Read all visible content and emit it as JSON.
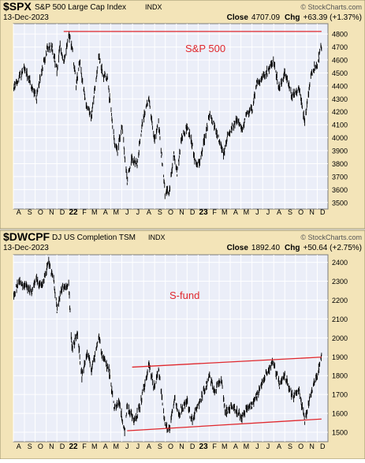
{
  "colors": {
    "frame_bg": "#f3e4b8",
    "plot_bg": "#ebeef8",
    "grid": "#ffffff",
    "price": "#000000",
    "annotation": "#e0282d",
    "text": "#000000"
  },
  "chart_data": [
    {
      "type": "line",
      "symbol": "$SPX",
      "title": "S&P 500 Large Cap Index",
      "exchange": "INDX",
      "watermark": "© StockCharts.com",
      "date": "13-Dec-2023",
      "close_label": "Close",
      "close": "4707.09",
      "chg_label": "Chg",
      "chg": "+63.39 (+1.37%)",
      "annotation_text": "S&P 500",
      "x_ticks": [
        "A",
        "S",
        "O",
        "N",
        "D",
        "22",
        "F",
        "M",
        "A",
        "M",
        "J",
        "J",
        "A",
        "S",
        "O",
        "N",
        "D",
        "23",
        "F",
        "M",
        "A",
        "M",
        "J",
        "J",
        "A",
        "S",
        "O",
        "N",
        "D"
      ],
      "y_ticks": [
        3500,
        3600,
        3700,
        3800,
        3900,
        4000,
        4100,
        4200,
        4300,
        4400,
        4500,
        4600,
        4700,
        4800
      ],
      "ylim": [
        3450,
        4880
      ],
      "grid": true,
      "x": [
        "2021-08-01",
        "2021-09-02",
        "2021-10-04",
        "2021-10-15",
        "2021-11-05",
        "2021-11-18",
        "2021-12-01",
        "2021-12-10",
        "2021-12-20",
        "2022-01-04",
        "2022-01-14",
        "2022-01-24",
        "2022-02-02",
        "2022-02-14",
        "2022-02-24",
        "2022-03-08",
        "2022-03-29",
        "2022-04-08",
        "2022-04-21",
        "2022-05-04",
        "2022-05-12",
        "2022-05-20",
        "2022-06-01",
        "2022-06-16",
        "2022-06-28",
        "2022-07-14",
        "2022-07-29",
        "2022-08-16",
        "2022-09-01",
        "2022-09-12",
        "2022-09-30",
        "2022-10-12",
        "2022-10-25",
        "2022-11-03",
        "2022-11-15",
        "2022-12-01",
        "2022-12-13",
        "2022-12-22",
        "2023-01-05",
        "2023-01-20",
        "2023-02-02",
        "2023-02-17",
        "2023-03-02",
        "2023-03-13",
        "2023-03-24",
        "2023-04-18",
        "2023-05-04",
        "2023-05-19",
        "2023-06-01",
        "2023-06-15",
        "2023-06-30",
        "2023-07-14",
        "2023-07-31",
        "2023-08-17",
        "2023-09-01",
        "2023-09-22",
        "2023-10-11",
        "2023-10-27",
        "2023-11-14",
        "2023-11-30",
        "2023-12-13"
      ],
      "series": [
        {
          "values": [
            4385,
            4535,
            4300,
            4470,
            4690,
            4700,
            4515,
            4710,
            4570,
            4795,
            4660,
            4410,
            4590,
            4380,
            4225,
            4170,
            4630,
            4490,
            4460,
            4160,
            3930,
            3900,
            4100,
            3670,
            3840,
            3790,
            4130,
            4305,
            3970,
            4110,
            3580,
            3580,
            3860,
            3720,
            4000,
            4080,
            3990,
            3820,
            3810,
            4000,
            4180,
            4080,
            3960,
            3860,
            4000,
            4150,
            4060,
            4190,
            4220,
            4425,
            4450,
            4510,
            4590,
            4370,
            4510,
            4320,
            4370,
            4120,
            4500,
            4560,
            4707
          ]
        }
      ],
      "trendlines": [
        {
          "name": "resistance",
          "x": [
            "2021-12-20",
            "2023-12-13"
          ],
          "y": [
            4820,
            4820
          ]
        }
      ]
    },
    {
      "type": "line",
      "symbol": "$DWCPF",
      "title": "DJ US Completion TSM",
      "exchange": "INDX",
      "watermark": "© StockCharts.com",
      "date": "13-Dec-2023",
      "close_label": "Close",
      "close": "1892.40",
      "chg_label": "Chg",
      "chg": "+50.64 (+2.75%)",
      "annotation_text": "S-fund",
      "x_ticks": [
        "A",
        "S",
        "O",
        "N",
        "D",
        "22",
        "F",
        "M",
        "A",
        "M",
        "J",
        "J",
        "A",
        "S",
        "O",
        "N",
        "D",
        "23",
        "F",
        "M",
        "A",
        "M",
        "J",
        "J",
        "A",
        "S",
        "O",
        "N",
        "D"
      ],
      "y_ticks": [
        1500,
        1600,
        1700,
        1800,
        1900,
        2000,
        2100,
        2200,
        2300,
        2400
      ],
      "ylim": [
        1450,
        2440
      ],
      "grid": true,
      "x": [
        "2021-08-01",
        "2021-08-15",
        "2021-09-02",
        "2021-09-20",
        "2021-10-04",
        "2021-10-20",
        "2021-11-08",
        "2021-11-22",
        "2021-12-01",
        "2021-12-15",
        "2022-01-03",
        "2022-01-12",
        "2022-01-27",
        "2022-02-09",
        "2022-02-24",
        "2022-03-08",
        "2022-03-29",
        "2022-04-08",
        "2022-04-26",
        "2022-05-11",
        "2022-05-25",
        "2022-06-09",
        "2022-06-16",
        "2022-07-06",
        "2022-07-22",
        "2022-08-16",
        "2022-08-31",
        "2022-09-13",
        "2022-09-30",
        "2022-10-12",
        "2022-10-27",
        "2022-11-09",
        "2022-11-30",
        "2022-12-13",
        "2022-12-28",
        "2023-01-12",
        "2023-02-02",
        "2023-02-17",
        "2023-03-07",
        "2023-03-17",
        "2023-04-05",
        "2023-04-24",
        "2023-05-04",
        "2023-05-19",
        "2023-06-01",
        "2023-06-15",
        "2023-07-05",
        "2023-07-31",
        "2023-08-17",
        "2023-09-01",
        "2023-09-22",
        "2023-10-11",
        "2023-10-27",
        "2023-11-14",
        "2023-12-01",
        "2023-12-13"
      ],
      "series": [
        {
          "values": [
            2210,
            2300,
            2280,
            2240,
            2310,
            2280,
            2400,
            2310,
            2150,
            2260,
            2290,
            1940,
            2030,
            1800,
            1930,
            1830,
            2000,
            1900,
            1830,
            1620,
            1660,
            1500,
            1640,
            1560,
            1640,
            1850,
            1740,
            1830,
            1540,
            1510,
            1680,
            1600,
            1670,
            1560,
            1620,
            1690,
            1800,
            1710,
            1790,
            1610,
            1640,
            1600,
            1570,
            1640,
            1640,
            1700,
            1790,
            1870,
            1750,
            1800,
            1690,
            1720,
            1560,
            1720,
            1800,
            1892
          ]
        }
      ],
      "trendlines": [
        {
          "name": "upper-channel",
          "x": [
            "2022-06-30",
            "2023-12-13"
          ],
          "y": [
            1845,
            1898
          ]
        },
        {
          "name": "lower-channel",
          "x": [
            "2022-06-16",
            "2023-12-13"
          ],
          "y": [
            1508,
            1570
          ]
        }
      ]
    }
  ]
}
